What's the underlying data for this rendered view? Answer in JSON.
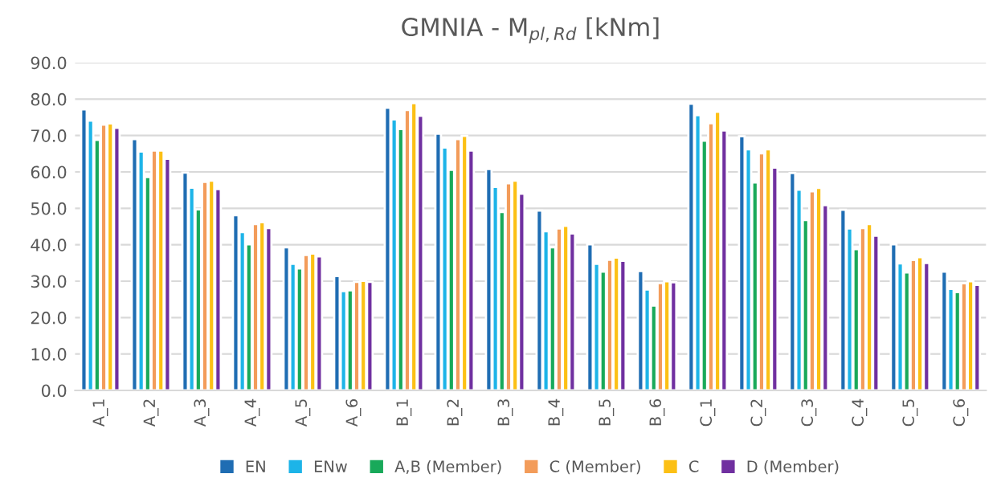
{
  "chart_data": {
    "type": "bar",
    "title": "GMNIA - M$_{pl,Rd}$ [kNm]",
    "categories": [
      "A_1",
      "A_2",
      "A_3",
      "A_4",
      "A_5",
      "A_6",
      "B_1",
      "B_2",
      "B_3",
      "B_4",
      "B_5",
      "B_6",
      "C_1",
      "C_2",
      "C_3",
      "C_4",
      "C_5",
      "C_6"
    ],
    "series": [
      {
        "name": "EN",
        "color": "#1f6db3",
        "values": [
          77.2,
          69.0,
          59.8,
          48.1,
          39.3,
          31.4,
          77.6,
          70.5,
          60.8,
          49.4,
          40.1,
          32.8,
          78.7,
          69.8,
          59.7,
          49.6,
          40.1,
          32.6
        ]
      },
      {
        "name": "ENw",
        "color": "#1db4e8",
        "values": [
          74.1,
          65.6,
          55.7,
          43.5,
          34.8,
          27.3,
          74.4,
          66.7,
          55.9,
          43.7,
          34.8,
          27.7,
          75.6,
          66.2,
          55.1,
          44.5,
          34.9,
          27.9
        ]
      },
      {
        "name": "A,B (Member)",
        "color": "#19a95a",
        "values": [
          68.8,
          58.6,
          49.7,
          40.1,
          33.5,
          27.5,
          71.8,
          60.6,
          49.0,
          39.3,
          32.6,
          23.3,
          68.6,
          57.1,
          46.8,
          38.8,
          32.4,
          27.0
        ]
      },
      {
        "name": "C (Member)",
        "color": "#f39c5a",
        "values": [
          73.0,
          65.9,
          57.3,
          45.7,
          37.2,
          29.8,
          77.0,
          69.0,
          56.9,
          44.5,
          35.9,
          29.5,
          73.4,
          65.1,
          54.7,
          44.6,
          35.8,
          29.4
        ]
      },
      {
        "name": "C",
        "color": "#fcc015",
        "values": [
          73.3,
          65.9,
          57.6,
          46.2,
          37.6,
          30.1,
          78.9,
          69.9,
          57.6,
          45.2,
          36.5,
          30.0,
          76.5,
          66.2,
          55.6,
          45.7,
          36.6,
          30.0
        ]
      },
      {
        "name": "D (Member)",
        "color": "#7030a0",
        "values": [
          72.1,
          63.6,
          55.3,
          44.6,
          36.8,
          29.8,
          75.4,
          65.9,
          54.0,
          43.1,
          35.6,
          29.7,
          71.4,
          61.2,
          50.9,
          42.5,
          35.0,
          29.0
        ]
      }
    ],
    "ylim": [
      0,
      90
    ],
    "yticks": [
      {
        "value": 0,
        "label": "0.0"
      },
      {
        "value": 10,
        "label": "10.0"
      },
      {
        "value": 20,
        "label": "20.0"
      },
      {
        "value": 30,
        "label": "30.0"
      },
      {
        "value": 40,
        "label": "40.0"
      },
      {
        "value": 50,
        "label": "50.0"
      },
      {
        "value": 60,
        "label": "60.0"
      },
      {
        "value": 70,
        "label": "70.0"
      },
      {
        "value": 80,
        "label": "80.0"
      },
      {
        "value": 90,
        "label": "90.0"
      }
    ],
    "grid": "y",
    "legend": "bottom"
  }
}
